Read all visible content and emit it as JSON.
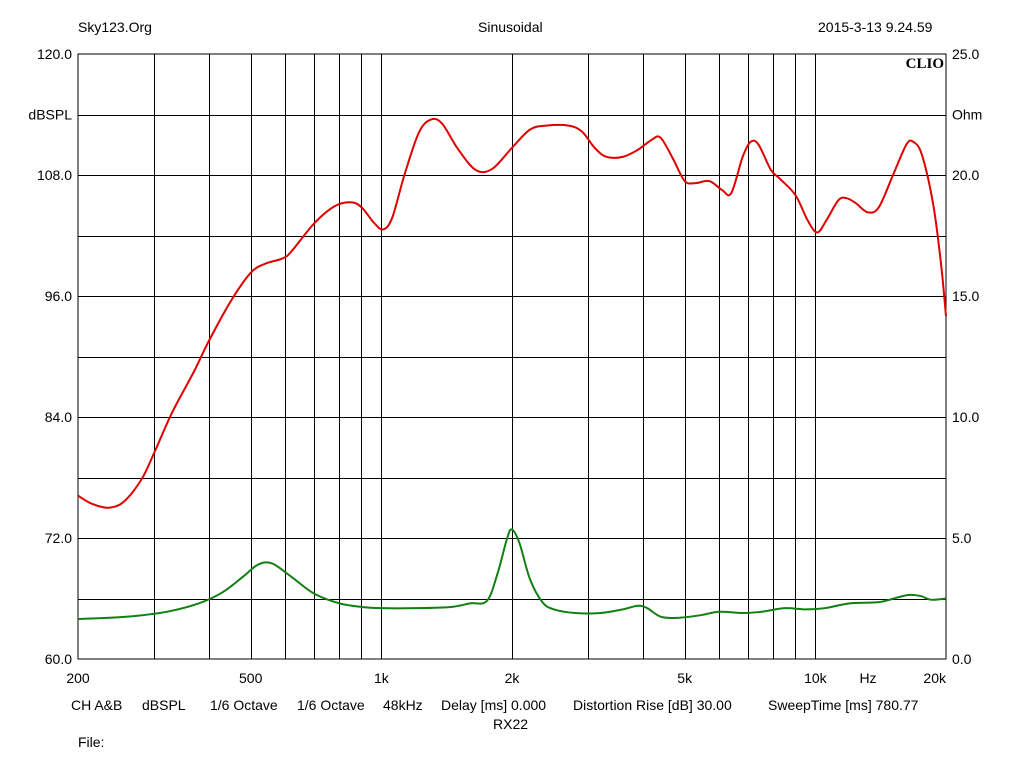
{
  "header": {
    "left": "Sky123.Org",
    "center": "Sinusoidal",
    "right": "2015-3-13 9.24.59"
  },
  "footer": {
    "ch": "CH A&B",
    "unit": "dBSPL",
    "smoothing1": "1/6 Octave",
    "smoothing2": "1/6 Octave",
    "rate": "48kHz",
    "delay": "Delay [ms] 0.000",
    "distortion": "Distortion Rise [dB] 30.00",
    "sweep": "SweepTime [ms] 780.77",
    "model": "RX22",
    "file": "File:"
  },
  "chart_data": {
    "type": "line",
    "brand": "CLIO",
    "xscale": "log",
    "xlim": [
      200,
      20000
    ],
    "xunit": "Hz",
    "x_tick_labels": [
      {
        "v": 200,
        "t": "200"
      },
      {
        "v": 500,
        "t": "500"
      },
      {
        "v": 1000,
        "t": "1k"
      },
      {
        "v": 2000,
        "t": "2k"
      },
      {
        "v": 5000,
        "t": "5k"
      },
      {
        "v": 10000,
        "t": "10k"
      },
      {
        "v": 20000,
        "t": "20k"
      }
    ],
    "x_grid": [
      300,
      400,
      500,
      600,
      700,
      800,
      900,
      1000,
      2000,
      3000,
      4000,
      5000,
      6000,
      7000,
      8000,
      9000,
      10000
    ],
    "y_left": {
      "label": "dBSPL",
      "lim": [
        60,
        120
      ],
      "ticks": [
        {
          "v": 60,
          "t": "60.0"
        },
        {
          "v": 72,
          "t": "72.0"
        },
        {
          "v": 84,
          "t": "84.0"
        },
        {
          "v": 96,
          "t": "96.0"
        },
        {
          "v": 108,
          "t": "108.0"
        },
        {
          "v": 120,
          "t": "120.0"
        }
      ],
      "grid": [
        66,
        72,
        78,
        84,
        90,
        96,
        102,
        108,
        114
      ]
    },
    "y_right": {
      "label": "Ohm",
      "lim": [
        0,
        25
      ],
      "ticks": [
        {
          "v": 0,
          "t": "0.0"
        },
        {
          "v": 5,
          "t": "5.0"
        },
        {
          "v": 10,
          "t": "10.0"
        },
        {
          "v": 15,
          "t": "15.0"
        },
        {
          "v": 20,
          "t": "20.0"
        },
        {
          "v": 25,
          "t": "25.0"
        }
      ]
    },
    "grid": true,
    "series": [
      {
        "axis": "left",
        "color": "#e00000",
        "points": [
          [
            200,
            76.2
          ],
          [
            215,
            75.4
          ],
          [
            235,
            75.0
          ],
          [
            255,
            75.6
          ],
          [
            280,
            77.8
          ],
          [
            300,
            80.5
          ],
          [
            330,
            84.5
          ],
          [
            370,
            88.5
          ],
          [
            400,
            91.5
          ],
          [
            450,
            95.5
          ],
          [
            500,
            98.3
          ],
          [
            540,
            99.2
          ],
          [
            590,
            99.7
          ],
          [
            620,
            100.4
          ],
          [
            700,
            103.2
          ],
          [
            780,
            104.9
          ],
          [
            850,
            105.3
          ],
          [
            900,
            104.8
          ],
          [
            960,
            103.3
          ],
          [
            1010,
            102.6
          ],
          [
            1060,
            103.8
          ],
          [
            1130,
            108.0
          ],
          [
            1220,
            112.2
          ],
          [
            1300,
            113.5
          ],
          [
            1380,
            113.1
          ],
          [
            1500,
            110.6
          ],
          [
            1650,
            108.5
          ],
          [
            1800,
            108.6
          ],
          [
            2000,
            110.7
          ],
          [
            2200,
            112.5
          ],
          [
            2400,
            112.9
          ],
          [
            2700,
            112.9
          ],
          [
            2900,
            112.3
          ],
          [
            3100,
            110.7
          ],
          [
            3300,
            109.8
          ],
          [
            3600,
            109.8
          ],
          [
            3900,
            110.5
          ],
          [
            4200,
            111.5
          ],
          [
            4400,
            111.7
          ],
          [
            4700,
            109.6
          ],
          [
            5000,
            107.4
          ],
          [
            5300,
            107.2
          ],
          [
            5700,
            107.4
          ],
          [
            6100,
            106.5
          ],
          [
            6400,
            106.2
          ],
          [
            6800,
            109.8
          ],
          [
            7100,
            111.3
          ],
          [
            7400,
            111.0
          ],
          [
            7900,
            108.5
          ],
          [
            8300,
            107.6
          ],
          [
            9000,
            106.0
          ],
          [
            9600,
            103.5
          ],
          [
            10100,
            102.3
          ],
          [
            10600,
            103.5
          ],
          [
            11300,
            105.5
          ],
          [
            11800,
            105.7
          ],
          [
            12400,
            105.2
          ],
          [
            13200,
            104.3
          ],
          [
            14000,
            104.8
          ],
          [
            15100,
            108.0
          ],
          [
            16200,
            111.0
          ],
          [
            16800,
            111.3
          ],
          [
            17600,
            110.0
          ],
          [
            18700,
            105.0
          ],
          [
            19500,
            99.0
          ],
          [
            20000,
            94.0
          ]
        ]
      },
      {
        "axis": "right",
        "color": "#108010",
        "points": [
          [
            200,
            1.65
          ],
          [
            260,
            1.75
          ],
          [
            320,
            1.95
          ],
          [
            380,
            2.3
          ],
          [
            430,
            2.75
          ],
          [
            480,
            3.4
          ],
          [
            520,
            3.9
          ],
          [
            560,
            3.95
          ],
          [
            620,
            3.4
          ],
          [
            700,
            2.7
          ],
          [
            800,
            2.3
          ],
          [
            900,
            2.15
          ],
          [
            1000,
            2.1
          ],
          [
            1200,
            2.1
          ],
          [
            1450,
            2.15
          ],
          [
            1600,
            2.3
          ],
          [
            1750,
            2.4
          ],
          [
            1850,
            3.5
          ],
          [
            1950,
            5.0
          ],
          [
            2000,
            5.35
          ],
          [
            2080,
            4.8
          ],
          [
            2200,
            3.3
          ],
          [
            2350,
            2.35
          ],
          [
            2500,
            2.05
          ],
          [
            2800,
            1.9
          ],
          [
            3200,
            1.9
          ],
          [
            3600,
            2.05
          ],
          [
            3900,
            2.2
          ],
          [
            4100,
            2.1
          ],
          [
            4400,
            1.75
          ],
          [
            4800,
            1.7
          ],
          [
            5400,
            1.8
          ],
          [
            6000,
            1.95
          ],
          [
            6800,
            1.9
          ],
          [
            7500,
            1.95
          ],
          [
            8500,
            2.1
          ],
          [
            9500,
            2.05
          ],
          [
            10500,
            2.1
          ],
          [
            12000,
            2.3
          ],
          [
            14000,
            2.35
          ],
          [
            15500,
            2.55
          ],
          [
            16500,
            2.65
          ],
          [
            17500,
            2.6
          ],
          [
            18500,
            2.45
          ],
          [
            20000,
            2.5
          ]
        ]
      }
    ]
  }
}
